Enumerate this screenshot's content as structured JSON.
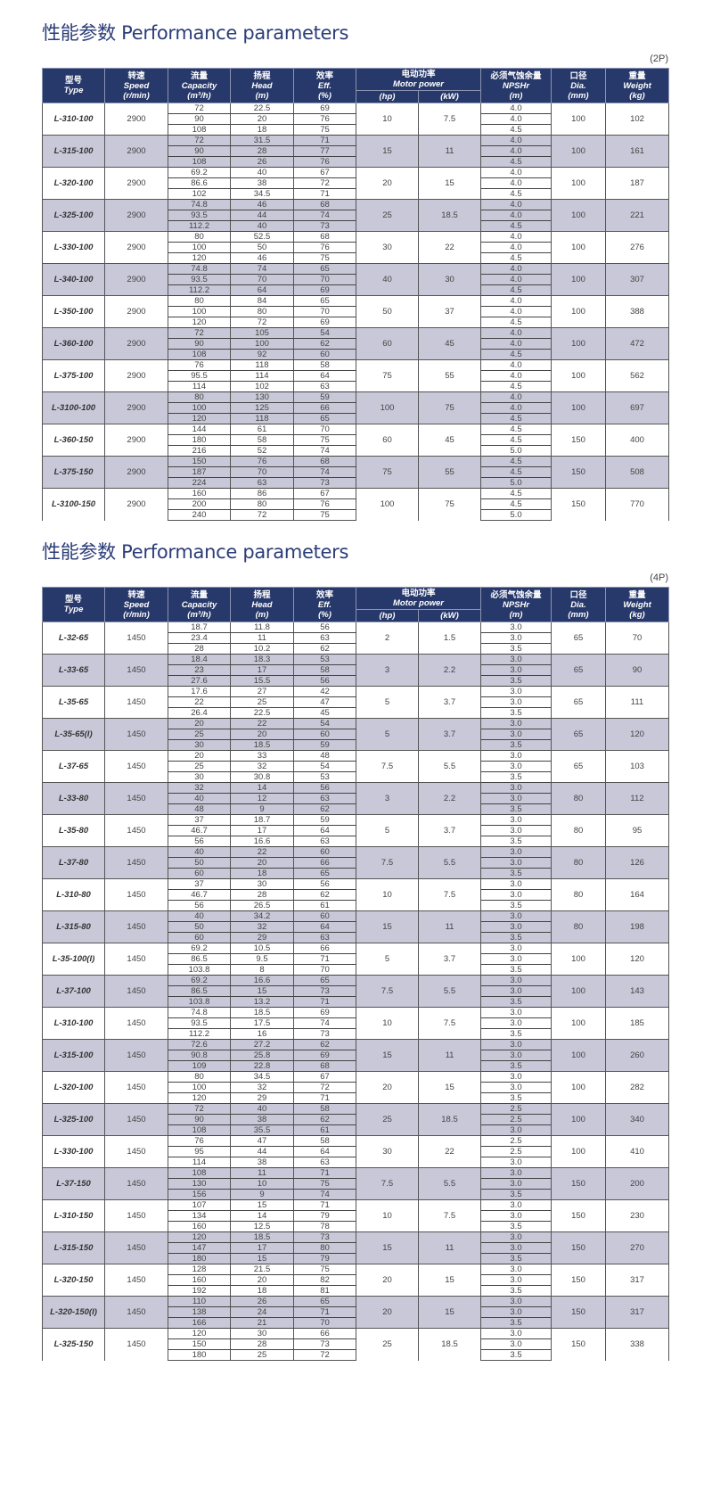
{
  "header": {
    "type": {
      "cn": "型号",
      "en": "Type"
    },
    "speed": {
      "cn": "转速",
      "en": "Speed",
      "u": "(r/min)"
    },
    "capacity": {
      "cn": "流量",
      "en": "Capacity",
      "u": "(m³/h)"
    },
    "head": {
      "cn": "扬程",
      "en": "Head",
      "u": "(m)"
    },
    "eff": {
      "cn": "效率",
      "en": "Eff.",
      "u": "(%)"
    },
    "motor": {
      "cn": "电动功率",
      "en": "Motor power",
      "hp": "(hp)",
      "kw": "(kW)"
    },
    "npshr": {
      "cn": "必须气蚀余量",
      "en": "NPSHr",
      "u": "(m)"
    },
    "dia": {
      "cn": "口径",
      "en": "Dia.",
      "u": "(mm)"
    },
    "weight": {
      "cn": "重量",
      "en": "Weight",
      "u": "(kg)"
    }
  },
  "colors": {
    "header_bg": "#27386a",
    "title": "#2b3d78",
    "shade": "#c8c8d8"
  },
  "tables": [
    {
      "title": "性能参数 Performance parameters",
      "tag": "(2P)",
      "rows": [
        {
          "type": "L-310-100",
          "speed": "2900",
          "cap": [
            "72",
            "90",
            "108"
          ],
          "head": [
            "22.5",
            "20",
            "18"
          ],
          "eff": [
            "69",
            "76",
            "75"
          ],
          "hp": "10",
          "kw": "7.5",
          "npsh": [
            "4.0",
            "4.0",
            "4.5"
          ],
          "dia": "100",
          "w": "102"
        },
        {
          "type": "L-315-100",
          "speed": "2900",
          "cap": [
            "72",
            "90",
            "108"
          ],
          "head": [
            "31.5",
            "28",
            "26"
          ],
          "eff": [
            "71",
            "77",
            "76"
          ],
          "hp": "15",
          "kw": "11",
          "npsh": [
            "4.0",
            "4.0",
            "4.5"
          ],
          "dia": "100",
          "w": "161"
        },
        {
          "type": "L-320-100",
          "speed": "2900",
          "cap": [
            "69.2",
            "86.6",
            "102"
          ],
          "head": [
            "40",
            "38",
            "34.5"
          ],
          "eff": [
            "67",
            "72",
            "71"
          ],
          "hp": "20",
          "kw": "15",
          "npsh": [
            "4.0",
            "4.0",
            "4.5"
          ],
          "dia": "100",
          "w": "187"
        },
        {
          "type": "L-325-100",
          "speed": "2900",
          "cap": [
            "74.8",
            "93.5",
            "112.2"
          ],
          "head": [
            "46",
            "44",
            "40"
          ],
          "eff": [
            "68",
            "74",
            "73"
          ],
          "hp": "25",
          "kw": "18.5",
          "npsh": [
            "4.0",
            "4.0",
            "4.5"
          ],
          "dia": "100",
          "w": "221"
        },
        {
          "type": "L-330-100",
          "speed": "2900",
          "cap": [
            "80",
            "100",
            "120"
          ],
          "head": [
            "52.5",
            "50",
            "46"
          ],
          "eff": [
            "68",
            "76",
            "75"
          ],
          "hp": "30",
          "kw": "22",
          "npsh": [
            "4.0",
            "4.0",
            "4.5"
          ],
          "dia": "100",
          "w": "276"
        },
        {
          "type": "L-340-100",
          "speed": "2900",
          "cap": [
            "74.8",
            "93.5",
            "112.2"
          ],
          "head": [
            "74",
            "70",
            "64"
          ],
          "eff": [
            "65",
            "70",
            "69"
          ],
          "hp": "40",
          "kw": "30",
          "npsh": [
            "4.0",
            "4.0",
            "4.5"
          ],
          "dia": "100",
          "w": "307"
        },
        {
          "type": "L-350-100",
          "speed": "2900",
          "cap": [
            "80",
            "100",
            "120"
          ],
          "head": [
            "84",
            "80",
            "72"
          ],
          "eff": [
            "65",
            "70",
            "69"
          ],
          "hp": "50",
          "kw": "37",
          "npsh": [
            "4.0",
            "4.0",
            "4.5"
          ],
          "dia": "100",
          "w": "388"
        },
        {
          "type": "L-360-100",
          "speed": "2900",
          "cap": [
            "72",
            "90",
            "108"
          ],
          "head": [
            "105",
            "100",
            "92"
          ],
          "eff": [
            "54",
            "62",
            "60"
          ],
          "hp": "60",
          "kw": "45",
          "npsh": [
            "4.0",
            "4.0",
            "4.5"
          ],
          "dia": "100",
          "w": "472"
        },
        {
          "type": "L-375-100",
          "speed": "2900",
          "cap": [
            "76",
            "95.5",
            "114"
          ],
          "head": [
            "118",
            "114",
            "102"
          ],
          "eff": [
            "58",
            "64",
            "63"
          ],
          "hp": "75",
          "kw": "55",
          "npsh": [
            "4.0",
            "4.0",
            "4.5"
          ],
          "dia": "100",
          "w": "562"
        },
        {
          "type": "L-3100-100",
          "speed": "2900",
          "cap": [
            "80",
            "100",
            "120"
          ],
          "head": [
            "130",
            "125",
            "118"
          ],
          "eff": [
            "59",
            "66",
            "65"
          ],
          "hp": "100",
          "kw": "75",
          "npsh": [
            "4.0",
            "4.0",
            "4.5"
          ],
          "dia": "100",
          "w": "697"
        },
        {
          "type": "L-360-150",
          "speed": "2900",
          "cap": [
            "144",
            "180",
            "216"
          ],
          "head": [
            "61",
            "58",
            "52"
          ],
          "eff": [
            "70",
            "75",
            "74"
          ],
          "hp": "60",
          "kw": "45",
          "npsh": [
            "4.5",
            "4.5",
            "5.0"
          ],
          "dia": "150",
          "w": "400"
        },
        {
          "type": "L-375-150",
          "speed": "2900",
          "cap": [
            "150",
            "187",
            "224"
          ],
          "head": [
            "76",
            "70",
            "63"
          ],
          "eff": [
            "68",
            "74",
            "73"
          ],
          "hp": "75",
          "kw": "55",
          "npsh": [
            "4.5",
            "4.5",
            "5.0"
          ],
          "dia": "150",
          "w": "508"
        },
        {
          "type": "L-3100-150",
          "speed": "2900",
          "cap": [
            "160",
            "200",
            "240"
          ],
          "head": [
            "86",
            "80",
            "72"
          ],
          "eff": [
            "67",
            "76",
            "75"
          ],
          "hp": "100",
          "kw": "75",
          "npsh": [
            "4.5",
            "4.5",
            "5.0"
          ],
          "dia": "150",
          "w": "770"
        }
      ]
    },
    {
      "title": "性能参数 Performance parameters",
      "tag": "(4P)",
      "rows": [
        {
          "type": "L-32-65",
          "speed": "1450",
          "cap": [
            "18.7",
            "23.4",
            "28"
          ],
          "head": [
            "11.8",
            "11",
            "10.2"
          ],
          "eff": [
            "56",
            "63",
            "62"
          ],
          "hp": "2",
          "kw": "1.5",
          "npsh": [
            "3.0",
            "3.0",
            "3.5"
          ],
          "dia": "65",
          "w": "70"
        },
        {
          "type": "L-33-65",
          "speed": "1450",
          "cap": [
            "18.4",
            "23",
            "27.6"
          ],
          "head": [
            "18.3",
            "17",
            "15.5"
          ],
          "eff": [
            "53",
            "58",
            "56"
          ],
          "hp": "3",
          "kw": "2.2",
          "npsh": [
            "3.0",
            "3.0",
            "3.5"
          ],
          "dia": "65",
          "w": "90"
        },
        {
          "type": "L-35-65",
          "speed": "1450",
          "cap": [
            "17.6",
            "22",
            "26.4"
          ],
          "head": [
            "27",
            "25",
            "22.5"
          ],
          "eff": [
            "42",
            "47",
            "45"
          ],
          "hp": "5",
          "kw": "3.7",
          "npsh": [
            "3.0",
            "3.0",
            "3.5"
          ],
          "dia": "65",
          "w": "111"
        },
        {
          "type": "L-35-65(I)",
          "speed": "1450",
          "cap": [
            "20",
            "25",
            "30"
          ],
          "head": [
            "22",
            "20",
            "18.5"
          ],
          "eff": [
            "54",
            "60",
            "59"
          ],
          "hp": "5",
          "kw": "3.7",
          "npsh": [
            "3.0",
            "3.0",
            "3.5"
          ],
          "dia": "65",
          "w": "120"
        },
        {
          "type": "L-37-65",
          "speed": "1450",
          "cap": [
            "20",
            "25",
            "30"
          ],
          "head": [
            "33",
            "32",
            "30.8"
          ],
          "eff": [
            "48",
            "54",
            "53"
          ],
          "hp": "7.5",
          "kw": "5.5",
          "npsh": [
            "3.0",
            "3.0",
            "3.5"
          ],
          "dia": "65",
          "w": "103"
        },
        {
          "type": "L-33-80",
          "speed": "1450",
          "cap": [
            "32",
            "40",
            "48"
          ],
          "head": [
            "14",
            "12",
            "9"
          ],
          "eff": [
            "56",
            "63",
            "62"
          ],
          "hp": "3",
          "kw": "2.2",
          "npsh": [
            "3.0",
            "3.0",
            "3.5"
          ],
          "dia": "80",
          "w": "112"
        },
        {
          "type": "L-35-80",
          "speed": "1450",
          "cap": [
            "37",
            "46.7",
            "56"
          ],
          "head": [
            "18.7",
            "17",
            "16.6"
          ],
          "eff": [
            "59",
            "64",
            "63"
          ],
          "hp": "5",
          "kw": "3.7",
          "npsh": [
            "3.0",
            "3.0",
            "3.5"
          ],
          "dia": "80",
          "w": "95"
        },
        {
          "type": "L-37-80",
          "speed": "1450",
          "cap": [
            "40",
            "50",
            "60"
          ],
          "head": [
            "22",
            "20",
            "18"
          ],
          "eff": [
            "60",
            "66",
            "65"
          ],
          "hp": "7.5",
          "kw": "5.5",
          "npsh": [
            "3.0",
            "3.0",
            "3.5"
          ],
          "dia": "80",
          "w": "126"
        },
        {
          "type": "L-310-80",
          "speed": "1450",
          "cap": [
            "37",
            "46.7",
            "56"
          ],
          "head": [
            "30",
            "28",
            "26.5"
          ],
          "eff": [
            "56",
            "62",
            "61"
          ],
          "hp": "10",
          "kw": "7.5",
          "npsh": [
            "3.0",
            "3.0",
            "3.5"
          ],
          "dia": "80",
          "w": "164"
        },
        {
          "type": "L-315-80",
          "speed": "1450",
          "cap": [
            "40",
            "50",
            "60"
          ],
          "head": [
            "34.2",
            "32",
            "29"
          ],
          "eff": [
            "60",
            "64",
            "63"
          ],
          "hp": "15",
          "kw": "11",
          "npsh": [
            "3.0",
            "3.0",
            "3.5"
          ],
          "dia": "80",
          "w": "198"
        },
        {
          "type": "L-35-100(I)",
          "speed": "1450",
          "cap": [
            "69.2",
            "86.5",
            "103.8"
          ],
          "head": [
            "10.5",
            "9.5",
            "8"
          ],
          "eff": [
            "66",
            "71",
            "70"
          ],
          "hp": "5",
          "kw": "3.7",
          "npsh": [
            "3.0",
            "3.0",
            "3.5"
          ],
          "dia": "100",
          "w": "120"
        },
        {
          "type": "L-37-100",
          "speed": "1450",
          "cap": [
            "69.2",
            "86.5",
            "103.8"
          ],
          "head": [
            "16.6",
            "15",
            "13.2"
          ],
          "eff": [
            "65",
            "73",
            "71"
          ],
          "hp": "7.5",
          "kw": "5.5",
          "npsh": [
            "3.0",
            "3.0",
            "3.5"
          ],
          "dia": "100",
          "w": "143"
        },
        {
          "type": "L-310-100",
          "speed": "1450",
          "cap": [
            "74.8",
            "93.5",
            "112.2"
          ],
          "head": [
            "18.5",
            "17.5",
            "16"
          ],
          "eff": [
            "69",
            "74",
            "73"
          ],
          "hp": "10",
          "kw": "7.5",
          "npsh": [
            "3.0",
            "3.0",
            "3.5"
          ],
          "dia": "100",
          "w": "185"
        },
        {
          "type": "L-315-100",
          "speed": "1450",
          "cap": [
            "72.6",
            "90.8",
            "109"
          ],
          "head": [
            "27.2",
            "25.8",
            "22.8"
          ],
          "eff": [
            "62",
            "69",
            "68"
          ],
          "hp": "15",
          "kw": "11",
          "npsh": [
            "3.0",
            "3.0",
            "3.5"
          ],
          "dia": "100",
          "w": "260"
        },
        {
          "type": "L-320-100",
          "speed": "1450",
          "cap": [
            "80",
            "100",
            "120"
          ],
          "head": [
            "34.5",
            "32",
            "29"
          ],
          "eff": [
            "67",
            "72",
            "71"
          ],
          "hp": "20",
          "kw": "15",
          "npsh": [
            "3.0",
            "3.0",
            "3.5"
          ],
          "dia": "100",
          "w": "282"
        },
        {
          "type": "L-325-100",
          "speed": "1450",
          "cap": [
            "72",
            "90",
            "108"
          ],
          "head": [
            "40",
            "38",
            "35.5"
          ],
          "eff": [
            "58",
            "62",
            "61"
          ],
          "hp": "25",
          "kw": "18.5",
          "npsh": [
            "2.5",
            "2.5",
            "3.0"
          ],
          "dia": "100",
          "w": "340"
        },
        {
          "type": "L-330-100",
          "speed": "1450",
          "cap": [
            "76",
            "95",
            "114"
          ],
          "head": [
            "47",
            "44",
            "38"
          ],
          "eff": [
            "58",
            "64",
            "63"
          ],
          "hp": "30",
          "kw": "22",
          "npsh": [
            "2.5",
            "2.5",
            "3.0"
          ],
          "dia": "100",
          "w": "410"
        },
        {
          "type": "L-37-150",
          "speed": "1450",
          "cap": [
            "108",
            "130",
            "156"
          ],
          "head": [
            "11",
            "10",
            "9"
          ],
          "eff": [
            "71",
            "75",
            "74"
          ],
          "hp": "7.5",
          "kw": "5.5",
          "npsh": [
            "3.0",
            "3.0",
            "3.5"
          ],
          "dia": "150",
          "w": "200"
        },
        {
          "type": "L-310-150",
          "speed": "1450",
          "cap": [
            "107",
            "134",
            "160"
          ],
          "head": [
            "15",
            "14",
            "12.5"
          ],
          "eff": [
            "71",
            "79",
            "78"
          ],
          "hp": "10",
          "kw": "7.5",
          "npsh": [
            "3.0",
            "3.0",
            "3.5"
          ],
          "dia": "150",
          "w": "230"
        },
        {
          "type": "L-315-150",
          "speed": "1450",
          "cap": [
            "120",
            "147",
            "180"
          ],
          "head": [
            "18.5",
            "17",
            "15"
          ],
          "eff": [
            "73",
            "80",
            "79"
          ],
          "hp": "15",
          "kw": "11",
          "npsh": [
            "3.0",
            "3.0",
            "3.5"
          ],
          "dia": "150",
          "w": "270"
        },
        {
          "type": "L-320-150",
          "speed": "1450",
          "cap": [
            "128",
            "160",
            "192"
          ],
          "head": [
            "21.5",
            "20",
            "18"
          ],
          "eff": [
            "75",
            "82",
            "81"
          ],
          "hp": "20",
          "kw": "15",
          "npsh": [
            "3.0",
            "3.0",
            "3.5"
          ],
          "dia": "150",
          "w": "317"
        },
        {
          "type": "L-320-150(I)",
          "speed": "1450",
          "cap": [
            "110",
            "138",
            "166"
          ],
          "head": [
            "26",
            "24",
            "21"
          ],
          "eff": [
            "65",
            "71",
            "70"
          ],
          "hp": "20",
          "kw": "15",
          "npsh": [
            "3.0",
            "3.0",
            "3.5"
          ],
          "dia": "150",
          "w": "317"
        },
        {
          "type": "L-325-150",
          "speed": "1450",
          "cap": [
            "120",
            "150",
            "180"
          ],
          "head": [
            "30",
            "28",
            "25"
          ],
          "eff": [
            "66",
            "73",
            "72"
          ],
          "hp": "25",
          "kw": "18.5",
          "npsh": [
            "3.0",
            "3.0",
            "3.5"
          ],
          "dia": "150",
          "w": "338"
        }
      ]
    }
  ]
}
